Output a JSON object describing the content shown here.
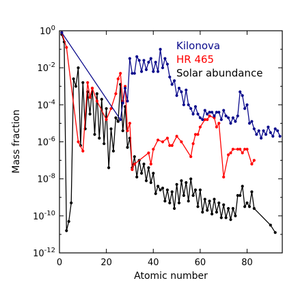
{
  "chart_data": {
    "type": "line",
    "title": "",
    "xlabel": "Atomic number",
    "ylabel": "Mass fraction",
    "xlim": [
      0,
      95
    ],
    "ylim_log10": [
      -12,
      0
    ],
    "yscale": "log",
    "legend_placement": "top-right",
    "x_ticks": [
      {
        "value": 0,
        "label": "0"
      },
      {
        "value": 20,
        "label": "20"
      },
      {
        "value": 40,
        "label": "40"
      },
      {
        "value": 60,
        "label": "60"
      },
      {
        "value": 80,
        "label": "80"
      }
    ],
    "y_ticks": [
      {
        "exp": 0,
        "base": "10",
        "sup": "0"
      },
      {
        "exp": -2,
        "base": "10",
        "sup": "-2"
      },
      {
        "exp": -4,
        "base": "10",
        "sup": "-4"
      },
      {
        "exp": -6,
        "base": "10",
        "sup": "-6"
      },
      {
        "exp": -8,
        "base": "10",
        "sup": "-8"
      },
      {
        "exp": -10,
        "base": "10",
        "sup": "-10"
      },
      {
        "exp": -12,
        "base": "10",
        "sup": "-12"
      }
    ],
    "series": [
      {
        "name": "Solar abundance",
        "color": "#000000",
        "log10_values": [
          [
            1,
            -0.2
          ],
          [
            2,
            -0.6
          ],
          [
            3,
            -10.8
          ],
          [
            4,
            -10.3
          ],
          [
            5,
            -9.3
          ],
          [
            6,
            -2.6
          ],
          [
            7,
            -3.0
          ],
          [
            8,
            -2.0
          ],
          [
            9,
            -6.2
          ],
          [
            10,
            -2.8
          ],
          [
            11,
            -5.3
          ],
          [
            12,
            -3.3
          ],
          [
            13,
            -4.5
          ],
          [
            14,
            -3.1
          ],
          [
            15,
            -5.6
          ],
          [
            16,
            -3.4
          ],
          [
            17,
            -5.8
          ],
          [
            18,
            -3.7
          ],
          [
            19,
            -6.1
          ],
          [
            20,
            -4.2
          ],
          [
            21,
            -7.4
          ],
          [
            22,
            -5.3
          ],
          [
            23,
            -6.5
          ],
          [
            24,
            -4.7
          ],
          [
            25,
            -4.9
          ],
          [
            26,
            -2.9
          ],
          [
            27,
            -5.4
          ],
          [
            28,
            -4.1
          ],
          [
            29,
            -6.3
          ],
          [
            30,
            -5.8
          ],
          [
            31,
            -7.4
          ],
          [
            32,
            -6.8
          ],
          [
            33,
            -7.9
          ],
          [
            34,
            -7.0
          ],
          [
            35,
            -7.7
          ],
          [
            36,
            -7.2
          ],
          [
            37,
            -8.1
          ],
          [
            38,
            -7.4
          ],
          [
            39,
            -8.2
          ],
          [
            40,
            -7.7
          ],
          [
            41,
            -8.8
          ],
          [
            42,
            -8.4
          ],
          [
            43,
            -8.6
          ],
          [
            44,
            -8.5
          ],
          [
            45,
            -9.2
          ],
          [
            46,
            -8.6
          ],
          [
            47,
            -9.3
          ],
          [
            48,
            -8.7
          ],
          [
            49,
            -9.6
          ],
          [
            50,
            -8.3
          ],
          [
            51,
            -9.3
          ],
          [
            52,
            -8.1
          ],
          [
            53,
            -8.9
          ],
          [
            54,
            -8.2
          ],
          [
            55,
            -9.2
          ],
          [
            56,
            -8.0
          ],
          [
            57,
            -8.9
          ],
          [
            58,
            -8.6
          ],
          [
            59,
            -9.5
          ],
          [
            60,
            -8.6
          ],
          [
            61,
            -9.8
          ],
          [
            62,
            -9.1
          ],
          [
            63,
            -9.7
          ],
          [
            64,
            -9.2
          ],
          [
            65,
            -9.9
          ],
          [
            66,
            -9.1
          ],
          [
            67,
            -9.8
          ],
          [
            68,
            -9.3
          ],
          [
            69,
            -10.1
          ],
          [
            70,
            -9.4
          ],
          [
            71,
            -10.1
          ],
          [
            72,
            -9.6
          ],
          [
            73,
            -10.2
          ],
          [
            74,
            -9.6
          ],
          [
            75,
            -10.0
          ],
          [
            76,
            -8.9
          ],
          [
            77,
            -8.9
          ],
          [
            78,
            -8.4
          ],
          [
            79,
            -9.5
          ],
          [
            80,
            -9.3
          ],
          [
            81,
            -9.5
          ],
          [
            82,
            -8.7
          ],
          [
            83,
            -9.6
          ],
          [
            90,
            -10.5
          ],
          [
            92,
            -10.9
          ]
        ]
      },
      {
        "name": "HR 465",
        "color": "#ff0000",
        "log10_values": [
          [
            1,
            -0.1
          ],
          [
            3,
            -0.9
          ],
          [
            8,
            -6.0
          ],
          [
            10,
            -6.5
          ],
          [
            12,
            -2.8
          ],
          [
            13,
            -3.6
          ],
          [
            14,
            -3.1
          ],
          [
            16,
            -3.8
          ],
          [
            20,
            -4.8
          ],
          [
            22,
            -4.2
          ],
          [
            24,
            -3.4
          ],
          [
            25,
            -2.6
          ],
          [
            26,
            -2.3
          ],
          [
            27,
            -3.8
          ],
          [
            28,
            -3.0
          ],
          [
            29,
            -5.4
          ],
          [
            30,
            -5.0
          ],
          [
            31,
            -7.5
          ],
          [
            32,
            -7.2
          ],
          [
            38,
            -6.6
          ],
          [
            39,
            -7.2
          ],
          [
            40,
            -6.4
          ],
          [
            42,
            -5.9
          ],
          [
            44,
            -6.0
          ],
          [
            46,
            -5.8
          ],
          [
            47,
            -6.2
          ],
          [
            48,
            -6.2
          ],
          [
            50,
            -5.7
          ],
          [
            52,
            -6.0
          ],
          [
            56,
            -6.8
          ],
          [
            57,
            -6.1
          ],
          [
            58,
            -5.6
          ],
          [
            59,
            -5.6
          ],
          [
            60,
            -5.2
          ],
          [
            62,
            -4.8
          ],
          [
            63,
            -4.8
          ],
          [
            64,
            -4.6
          ],
          [
            66,
            -4.7
          ],
          [
            67,
            -5.2
          ],
          [
            68,
            -5.0
          ],
          [
            70,
            -7.9
          ],
          [
            72,
            -6.7
          ],
          [
            73,
            -6.6
          ],
          [
            74,
            -6.4
          ],
          [
            76,
            -6.4
          ],
          [
            77,
            -6.4
          ],
          [
            78,
            -6.6
          ],
          [
            79,
            -6.4
          ],
          [
            80,
            -6.4
          ],
          [
            82,
            -7.2
          ],
          [
            83,
            -7.0
          ]
        ]
      },
      {
        "name": "Kilonova",
        "color": "#0a0a8c",
        "log10_values": [
          [
            1,
            -0.1
          ],
          [
            26,
            -4.8
          ],
          [
            27,
            -3.9
          ],
          [
            28,
            -3.1
          ],
          [
            29,
            -3.8
          ],
          [
            30,
            -1.5
          ],
          [
            31,
            -2.3
          ],
          [
            32,
            -2.3
          ],
          [
            33,
            -1.4
          ],
          [
            34,
            -1.6
          ],
          [
            35,
            -2.2
          ],
          [
            36,
            -1.6
          ],
          [
            37,
            -2.1
          ],
          [
            38,
            -1.7
          ],
          [
            39,
            -1.5
          ],
          [
            40,
            -2.2
          ],
          [
            41,
            -1.7
          ],
          [
            42,
            -2.2
          ],
          [
            43,
            -1.0
          ],
          [
            44,
            -2.0
          ],
          [
            45,
            -1.5
          ],
          [
            46,
            -1.8
          ],
          [
            47,
            -2.5
          ],
          [
            48,
            -2.9
          ],
          [
            49,
            -2.7
          ],
          [
            50,
            -3.5
          ],
          [
            51,
            -3.1
          ],
          [
            52,
            -3.3
          ],
          [
            53,
            -4.0
          ],
          [
            54,
            -3.2
          ],
          [
            55,
            -4.0
          ],
          [
            56,
            -4.2
          ],
          [
            57,
            -4.5
          ],
          [
            58,
            -4.1
          ],
          [
            59,
            -4.5
          ],
          [
            60,
            -4.7
          ],
          [
            61,
            -4.8
          ],
          [
            62,
            -4.3
          ],
          [
            63,
            -4.5
          ],
          [
            64,
            -4.4
          ],
          [
            65,
            -4.4
          ],
          [
            66,
            -4.6
          ],
          [
            67,
            -4.4
          ],
          [
            68,
            -4.4
          ],
          [
            69,
            -4.8
          ],
          [
            70,
            -4.3
          ],
          [
            71,
            -4.6
          ],
          [
            72,
            -4.7
          ],
          [
            73,
            -5.0
          ],
          [
            74,
            -4.7
          ],
          [
            75,
            -4.9
          ],
          [
            76,
            -4.6
          ],
          [
            77,
            -3.3
          ],
          [
            78,
            -3.5
          ],
          [
            79,
            -4.2
          ],
          [
            80,
            -4.0
          ],
          [
            81,
            -5.0
          ],
          [
            82,
            -4.9
          ],
          [
            83,
            -5.3
          ],
          [
            84,
            -5.6
          ],
          [
            85,
            -5.4
          ],
          [
            86,
            -5.8
          ],
          [
            87,
            -5.4
          ],
          [
            88,
            -5.6
          ],
          [
            89,
            -5.2
          ],
          [
            90,
            -5.5
          ],
          [
            91,
            -5.7
          ],
          [
            92,
            -5.3
          ],
          [
            93,
            -5.4
          ],
          [
            94,
            -5.7
          ]
        ]
      }
    ],
    "legend": [
      {
        "label": "Kilonova",
        "color": "#0a0a8c"
      },
      {
        "label": "HR 465",
        "color": "#ff0000"
      },
      {
        "label": "Solar abundance",
        "color": "#000000"
      }
    ]
  }
}
